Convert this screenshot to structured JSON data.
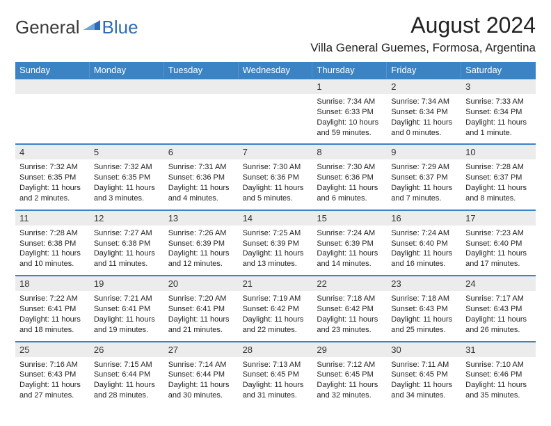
{
  "brand": {
    "name1": "General",
    "name2": "Blue"
  },
  "title": "August 2024",
  "location": "Villa General Guemes, Formosa, Argentina",
  "colors": {
    "header_bg": "#3a83c5",
    "daynum_bg": "#ececec",
    "week_border": "#3a83c5",
    "logo_blue": "#2d6bb5"
  },
  "weekdays": [
    "Sunday",
    "Monday",
    "Tuesday",
    "Wednesday",
    "Thursday",
    "Friday",
    "Saturday"
  ],
  "weeks": [
    [
      {
        "n": "",
        "sr": "",
        "ss": "",
        "dl": ""
      },
      {
        "n": "",
        "sr": "",
        "ss": "",
        "dl": ""
      },
      {
        "n": "",
        "sr": "",
        "ss": "",
        "dl": ""
      },
      {
        "n": "",
        "sr": "",
        "ss": "",
        "dl": ""
      },
      {
        "n": "1",
        "sr": "Sunrise: 7:34 AM",
        "ss": "Sunset: 6:33 PM",
        "dl": "Daylight: 10 hours and 59 minutes."
      },
      {
        "n": "2",
        "sr": "Sunrise: 7:34 AM",
        "ss": "Sunset: 6:34 PM",
        "dl": "Daylight: 11 hours and 0 minutes."
      },
      {
        "n": "3",
        "sr": "Sunrise: 7:33 AM",
        "ss": "Sunset: 6:34 PM",
        "dl": "Daylight: 11 hours and 1 minute."
      }
    ],
    [
      {
        "n": "4",
        "sr": "Sunrise: 7:32 AM",
        "ss": "Sunset: 6:35 PM",
        "dl": "Daylight: 11 hours and 2 minutes."
      },
      {
        "n": "5",
        "sr": "Sunrise: 7:32 AM",
        "ss": "Sunset: 6:35 PM",
        "dl": "Daylight: 11 hours and 3 minutes."
      },
      {
        "n": "6",
        "sr": "Sunrise: 7:31 AM",
        "ss": "Sunset: 6:36 PM",
        "dl": "Daylight: 11 hours and 4 minutes."
      },
      {
        "n": "7",
        "sr": "Sunrise: 7:30 AM",
        "ss": "Sunset: 6:36 PM",
        "dl": "Daylight: 11 hours and 5 minutes."
      },
      {
        "n": "8",
        "sr": "Sunrise: 7:30 AM",
        "ss": "Sunset: 6:36 PM",
        "dl": "Daylight: 11 hours and 6 minutes."
      },
      {
        "n": "9",
        "sr": "Sunrise: 7:29 AM",
        "ss": "Sunset: 6:37 PM",
        "dl": "Daylight: 11 hours and 7 minutes."
      },
      {
        "n": "10",
        "sr": "Sunrise: 7:28 AM",
        "ss": "Sunset: 6:37 PM",
        "dl": "Daylight: 11 hours and 8 minutes."
      }
    ],
    [
      {
        "n": "11",
        "sr": "Sunrise: 7:28 AM",
        "ss": "Sunset: 6:38 PM",
        "dl": "Daylight: 11 hours and 10 minutes."
      },
      {
        "n": "12",
        "sr": "Sunrise: 7:27 AM",
        "ss": "Sunset: 6:38 PM",
        "dl": "Daylight: 11 hours and 11 minutes."
      },
      {
        "n": "13",
        "sr": "Sunrise: 7:26 AM",
        "ss": "Sunset: 6:39 PM",
        "dl": "Daylight: 11 hours and 12 minutes."
      },
      {
        "n": "14",
        "sr": "Sunrise: 7:25 AM",
        "ss": "Sunset: 6:39 PM",
        "dl": "Daylight: 11 hours and 13 minutes."
      },
      {
        "n": "15",
        "sr": "Sunrise: 7:24 AM",
        "ss": "Sunset: 6:39 PM",
        "dl": "Daylight: 11 hours and 14 minutes."
      },
      {
        "n": "16",
        "sr": "Sunrise: 7:24 AM",
        "ss": "Sunset: 6:40 PM",
        "dl": "Daylight: 11 hours and 16 minutes."
      },
      {
        "n": "17",
        "sr": "Sunrise: 7:23 AM",
        "ss": "Sunset: 6:40 PM",
        "dl": "Daylight: 11 hours and 17 minutes."
      }
    ],
    [
      {
        "n": "18",
        "sr": "Sunrise: 7:22 AM",
        "ss": "Sunset: 6:41 PM",
        "dl": "Daylight: 11 hours and 18 minutes."
      },
      {
        "n": "19",
        "sr": "Sunrise: 7:21 AM",
        "ss": "Sunset: 6:41 PM",
        "dl": "Daylight: 11 hours and 19 minutes."
      },
      {
        "n": "20",
        "sr": "Sunrise: 7:20 AM",
        "ss": "Sunset: 6:41 PM",
        "dl": "Daylight: 11 hours and 21 minutes."
      },
      {
        "n": "21",
        "sr": "Sunrise: 7:19 AM",
        "ss": "Sunset: 6:42 PM",
        "dl": "Daylight: 11 hours and 22 minutes."
      },
      {
        "n": "22",
        "sr": "Sunrise: 7:18 AM",
        "ss": "Sunset: 6:42 PM",
        "dl": "Daylight: 11 hours and 23 minutes."
      },
      {
        "n": "23",
        "sr": "Sunrise: 7:18 AM",
        "ss": "Sunset: 6:43 PM",
        "dl": "Daylight: 11 hours and 25 minutes."
      },
      {
        "n": "24",
        "sr": "Sunrise: 7:17 AM",
        "ss": "Sunset: 6:43 PM",
        "dl": "Daylight: 11 hours and 26 minutes."
      }
    ],
    [
      {
        "n": "25",
        "sr": "Sunrise: 7:16 AM",
        "ss": "Sunset: 6:43 PM",
        "dl": "Daylight: 11 hours and 27 minutes."
      },
      {
        "n": "26",
        "sr": "Sunrise: 7:15 AM",
        "ss": "Sunset: 6:44 PM",
        "dl": "Daylight: 11 hours and 28 minutes."
      },
      {
        "n": "27",
        "sr": "Sunrise: 7:14 AM",
        "ss": "Sunset: 6:44 PM",
        "dl": "Daylight: 11 hours and 30 minutes."
      },
      {
        "n": "28",
        "sr": "Sunrise: 7:13 AM",
        "ss": "Sunset: 6:45 PM",
        "dl": "Daylight: 11 hours and 31 minutes."
      },
      {
        "n": "29",
        "sr": "Sunrise: 7:12 AM",
        "ss": "Sunset: 6:45 PM",
        "dl": "Daylight: 11 hours and 32 minutes."
      },
      {
        "n": "30",
        "sr": "Sunrise: 7:11 AM",
        "ss": "Sunset: 6:45 PM",
        "dl": "Daylight: 11 hours and 34 minutes."
      },
      {
        "n": "31",
        "sr": "Sunrise: 7:10 AM",
        "ss": "Sunset: 6:46 PM",
        "dl": "Daylight: 11 hours and 35 minutes."
      }
    ]
  ]
}
